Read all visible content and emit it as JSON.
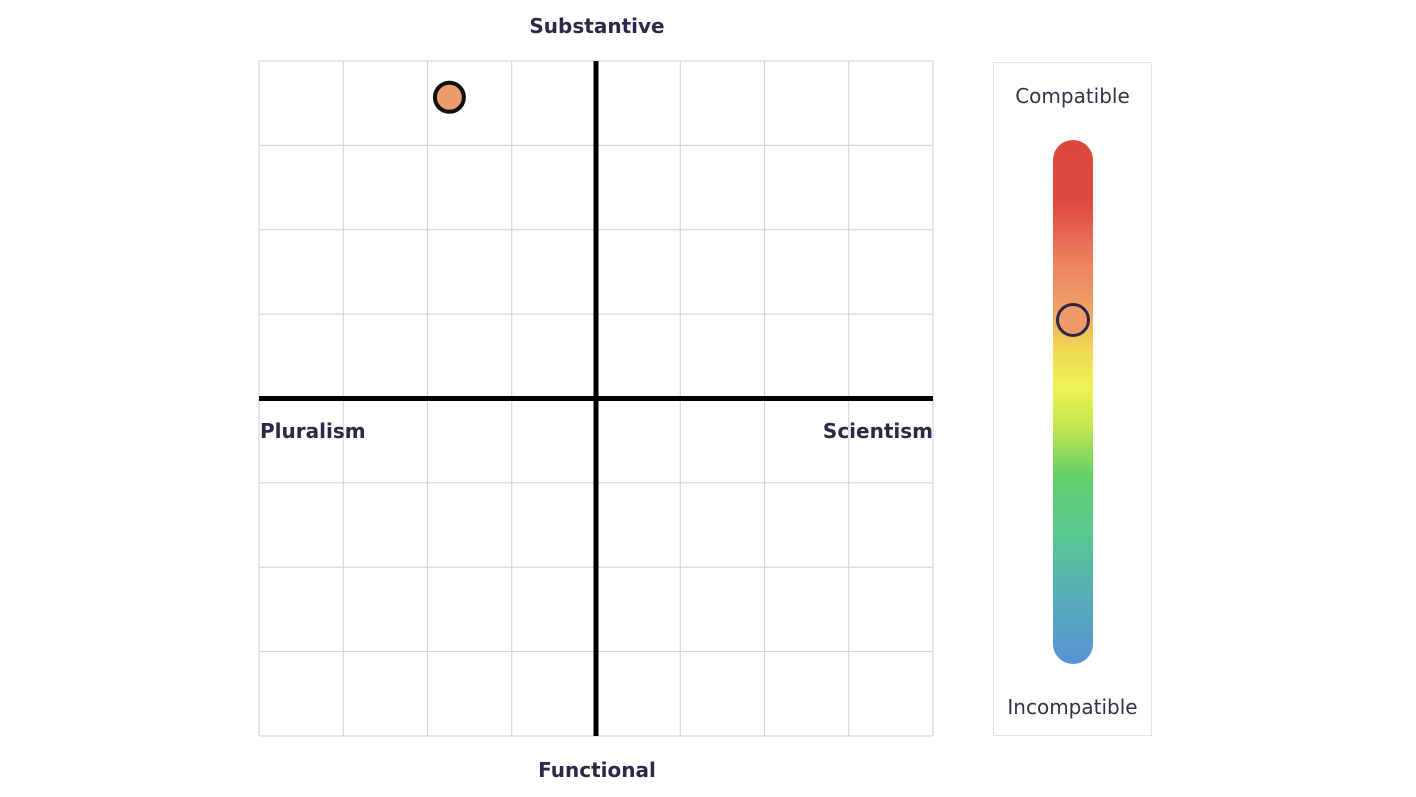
{
  "chart_data": {
    "type": "scatter",
    "xlabel_left": "Pluralism",
    "xlabel_right": "Scientism",
    "ylabel_top": "Substantive",
    "ylabel_bottom": "Functional",
    "xlim": [
      -4,
      4
    ],
    "ylim": [
      -4,
      4
    ],
    "grid": true,
    "points": [
      {
        "x": -1.74,
        "y": 3.57,
        "color": "#ef9a6a"
      }
    ],
    "compatibility_scale": {
      "top_label": "Compatible",
      "bottom_label": "Incompatible",
      "value": 0.67,
      "marker_color": "#ef9a6a"
    }
  }
}
